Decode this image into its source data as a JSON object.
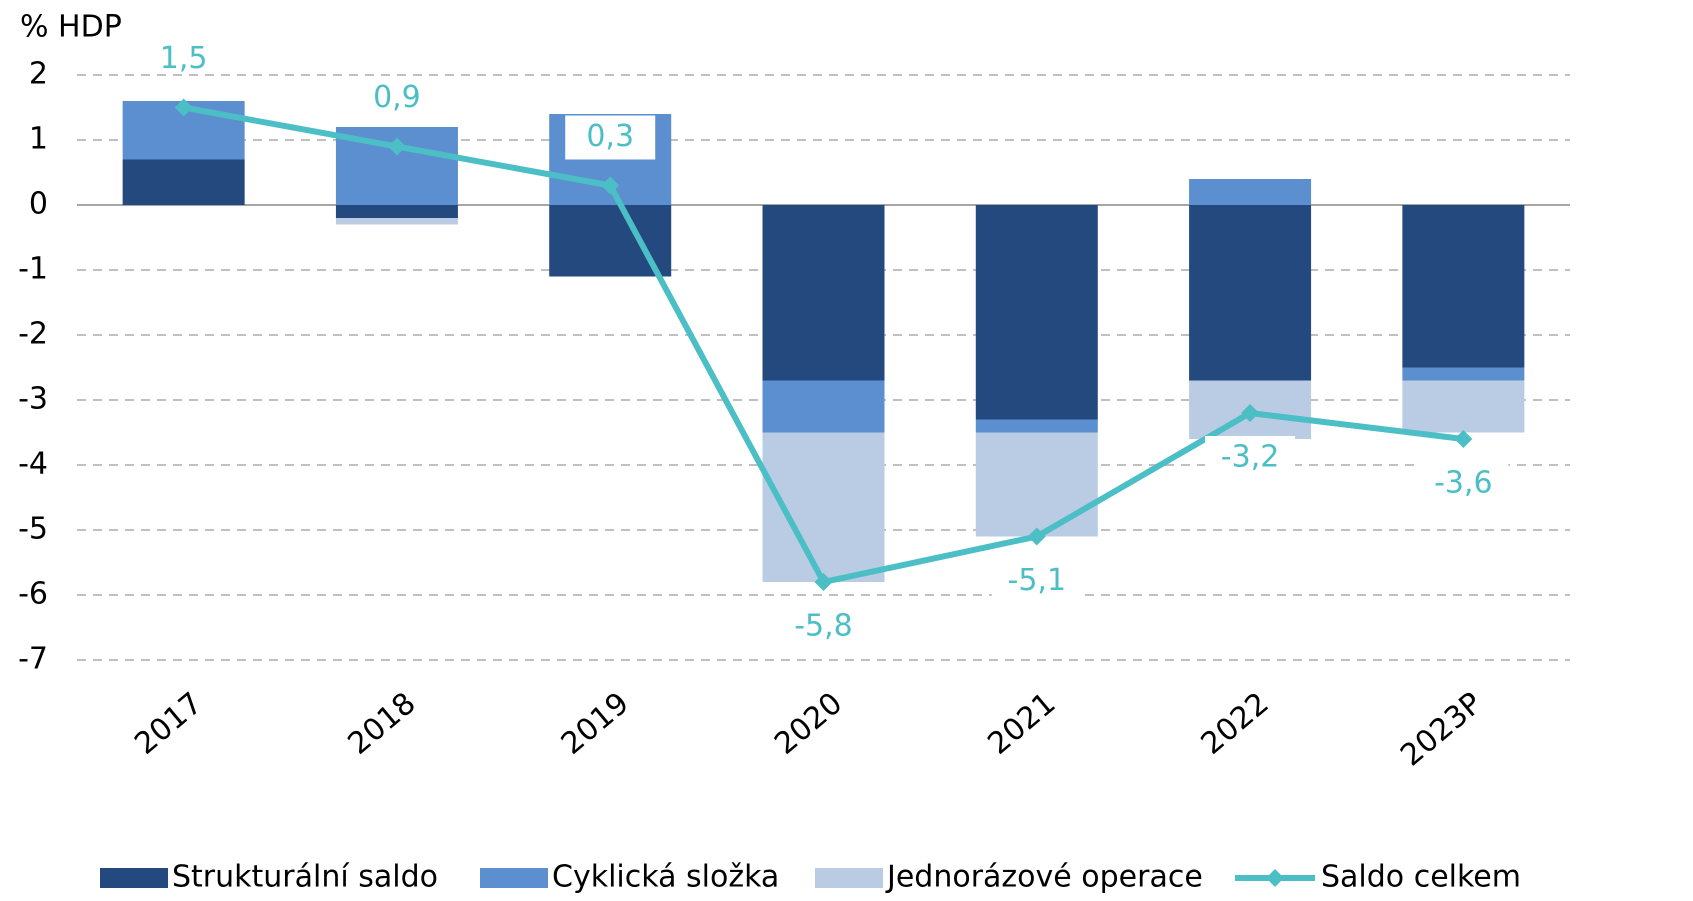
{
  "chart_data": {
    "type": "bar",
    "stacked": true,
    "y_label": "% HDP",
    "categories": [
      "2017",
      "2018",
      "2019",
      "2020",
      "2021",
      "2022",
      "2023P"
    ],
    "series": [
      {
        "name": "Strukturální saldo",
        "color": "#23497e",
        "values": [
          0.7,
          -0.2,
          -1.1,
          -2.7,
          -3.3,
          -2.7,
          -2.5
        ]
      },
      {
        "name": "Cyklická složka",
        "color": "#5b8fcf",
        "values": [
          0.9,
          1.2,
          1.4,
          -0.8,
          -0.2,
          0.4,
          -0.2
        ]
      },
      {
        "name": "Jednorázové operace",
        "color": "#b9cce4",
        "values": [
          0,
          -0.1,
          0,
          -2.3,
          -1.6,
          -0.9,
          -0.8
        ]
      },
      {
        "name": "Saldo celkem",
        "type": "line",
        "color": "#4bbfc5",
        "values": [
          1.5,
          0.9,
          0.3,
          -5.8,
          -5.1,
          -3.2,
          -3.6
        ],
        "value_labels": [
          "1,5",
          "0,9",
          "0,3",
          "-5,8",
          "-5,1",
          "-3,2",
          "-3,6"
        ]
      }
    ],
    "ylim": [
      -7.5,
      2.3
    ],
    "yticks": [
      2,
      1,
      0,
      -1,
      -2,
      -3,
      -4,
      -5,
      -6,
      -7
    ],
    "grid": true,
    "legend": "bottom"
  }
}
